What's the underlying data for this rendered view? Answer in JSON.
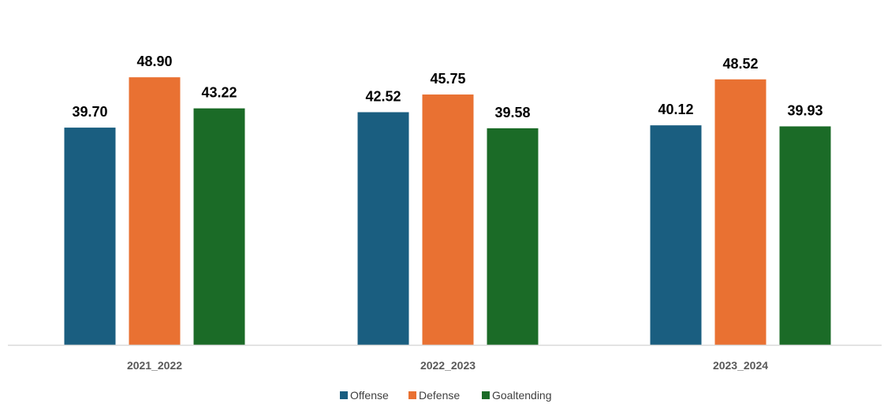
{
  "chart_data": {
    "type": "bar",
    "title": "",
    "xlabel": "",
    "ylabel": "",
    "ylim": [
      0,
      55
    ],
    "grid": false,
    "legend_position": "bottom",
    "categories": [
      "2021_2022",
      "2022_2023",
      "2023_2024"
    ],
    "series": [
      {
        "name": "Offense",
        "color": "#1a5e80",
        "values": [
          39.7,
          42.52,
          40.12
        ],
        "labels": [
          "39.70",
          "42.52",
          "40.12"
        ]
      },
      {
        "name": "Defense",
        "color": "#e97132",
        "values": [
          48.9,
          45.75,
          48.52
        ],
        "labels": [
          "48.90",
          "45.75",
          "48.52"
        ]
      },
      {
        "name": "Goaltending",
        "color": "#1b6b27",
        "values": [
          43.22,
          39.58,
          39.93
        ],
        "labels": [
          "43.22",
          "39.58",
          "39.93"
        ]
      }
    ]
  }
}
